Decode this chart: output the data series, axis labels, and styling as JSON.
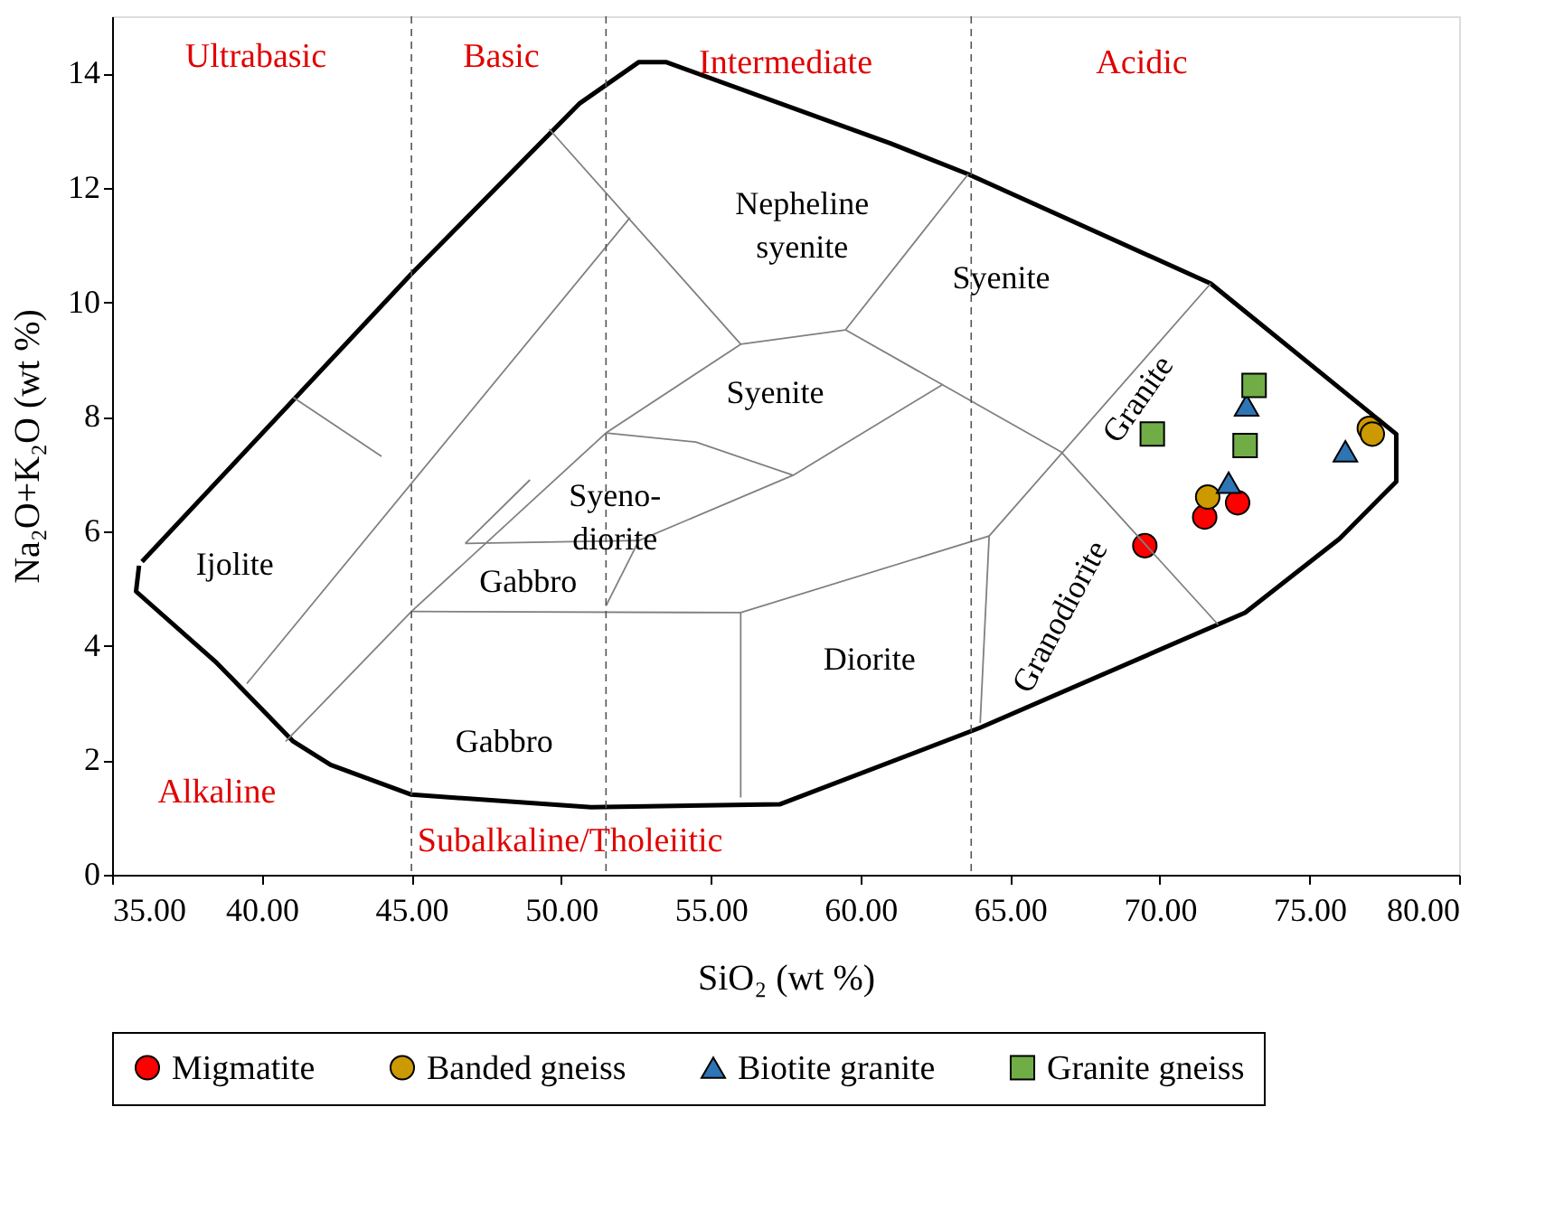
{
  "chart_data": {
    "type": "scatter",
    "xlabel": "SiO₂ (wt %)",
    "ylabel": "Na₂O+K₂O (wt %)",
    "xlim": [
      35,
      80
    ],
    "xticks": [
      {
        "value": 35,
        "label": "35.00"
      },
      {
        "value": 40,
        "label": "40.00"
      },
      {
        "value": 45,
        "label": "45.00"
      },
      {
        "value": 50,
        "label": "50.00"
      },
      {
        "value": 55,
        "label": "55.00"
      },
      {
        "value": 60,
        "label": "60.00"
      },
      {
        "value": 65,
        "label": "65.00"
      },
      {
        "value": 70,
        "label": "70.00"
      },
      {
        "value": 75,
        "label": "75.00"
      },
      {
        "value": 80,
        "label": "80.00"
      }
    ],
    "ylim": [
      0,
      15
    ],
    "yticks": [
      0,
      2,
      4,
      6,
      8,
      10,
      12,
      14
    ],
    "grid": false,
    "legend": "bottom",
    "series": [
      {
        "name": "Migmatite",
        "marker": "circle",
        "color": "#ff0000",
        "x": [
          69.5,
          71.5,
          72.6
        ],
        "values": [
          5.75,
          6.25,
          6.5
        ]
      },
      {
        "name": "Banded gneiss",
        "marker": "circle",
        "color": "#cc9900",
        "x": [
          71.6,
          77.0,
          77.1
        ],
        "values": [
          6.6,
          7.8,
          7.7
        ]
      },
      {
        "name": "Biotite granite",
        "marker": "triangle",
        "color": "#2e75b6",
        "x": [
          72.3,
          72.9,
          76.2
        ],
        "values": [
          6.85,
          8.2,
          7.4
        ]
      },
      {
        "name": "Granite gneiss",
        "marker": "square",
        "color": "#70ad47",
        "x": [
          69.75,
          73.15,
          72.85
        ],
        "values": [
          7.7,
          8.55,
          7.5
        ]
      },
      {
        "type": "line",
        "color": "#000000",
        "x": [
          35.9,
          35.8,
          38.5,
          41.05,
          42.3,
          45.0,
          51.0,
          57.3,
          64.0,
          72.85,
          76.0,
          77.9,
          77.9,
          71.7,
          63.6,
          61.0,
          53.5,
          52.6,
          50.6,
          45.0,
          36.0
        ],
        "values": [
          5.4,
          4.95,
          3.7,
          2.33,
          1.92,
          1.4,
          1.18,
          1.23,
          2.57,
          4.58,
          5.87,
          6.87,
          7.7,
          10.33,
          12.24,
          12.78,
          14.2,
          14.2,
          13.47,
          10.5,
          5.47
        ]
      },
      {
        "type": "line",
        "color": "#808080",
        "x": [
          41.05,
          44.0
        ],
        "values": [
          8.34,
          7.31
        ]
      },
      {
        "type": "line",
        "color": "#808080",
        "x": [
          39.5,
          52.3
        ],
        "values": [
          3.34,
          11.48
        ]
      },
      {
        "type": "line",
        "color": "#808080",
        "x": [
          40.8,
          45.0,
          51.5,
          56.0,
          59.5,
          63.6
        ],
        "values": [
          2.33,
          4.6,
          7.72,
          9.27,
          9.52,
          12.24
        ]
      },
      {
        "type": "line",
        "color": "#808080",
        "x": [
          49.6,
          56.0
        ],
        "values": [
          13.03,
          9.27
        ]
      },
      {
        "type": "line",
        "color": "#808080",
        "x": [
          59.5,
          66.7,
          71.95
        ],
        "values": [
          9.52,
          7.39,
          4.37
        ]
      },
      {
        "type": "line",
        "color": "#808080",
        "x": [
          71.7,
          64.3,
          64.0
        ],
        "values": [
          10.33,
          5.92,
          2.65
        ]
      },
      {
        "type": "line",
        "color": "#808080",
        "x": [
          45.0,
          56.0,
          64.3
        ],
        "values": [
          4.6,
          4.58,
          5.92
        ]
      },
      {
        "type": "line",
        "color": "#808080",
        "x": [
          56.0,
          56.0
        ],
        "values": [
          4.58,
          1.35
        ]
      },
      {
        "type": "line",
        "color": "#808080",
        "x": [
          46.8,
          52.6,
          51.5
        ],
        "values": [
          5.79,
          5.84,
          4.7
        ]
      },
      {
        "type": "line",
        "color": "#808080",
        "x": [
          52.6,
          57.75,
          62.76
        ],
        "values": [
          5.84,
          6.98,
          8.57
        ]
      },
      {
        "type": "line",
        "color": "#808080",
        "x": [
          51.5,
          54.5,
          57.75
        ],
        "values": [
          7.72,
          7.56,
          6.98
        ]
      },
      {
        "type": "line",
        "color": "#808080",
        "x": [
          46.8,
          48.96
        ],
        "values": [
          5.79,
          6.9
        ]
      }
    ],
    "ref_lines": [
      {
        "axis": "x",
        "value": 45,
        "color": "#555555",
        "line_style": "dashed"
      },
      {
        "axis": "x",
        "value": 51.5,
        "color": "#555555",
        "line_style": "dashed"
      },
      {
        "axis": "x",
        "value": 63.7,
        "color": "#555555",
        "line_style": "dashed"
      }
    ],
    "annotations": [
      "Ultrabasic",
      "Basic",
      "Intermediate",
      "Acidic",
      "Alkaline",
      "Subalkaline/Tholeiitic",
      "Ijolite",
      "Nepheline\nsyenite",
      "Syenite",
      "Syenite",
      "Syeno-\ndiorite",
      "Gabbro",
      "Gabbro",
      "Diorite",
      "Granodiorite",
      "Granite"
    ]
  }
}
